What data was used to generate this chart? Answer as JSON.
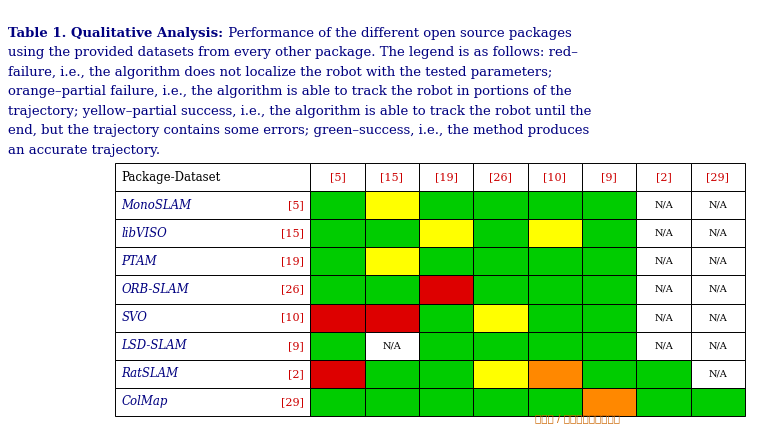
{
  "caption_lines": [
    {
      "bold": "Table 1. Qualitative Analysis:",
      "normal": " Performance of the different open source packages"
    },
    {
      "bold": "",
      "normal": "using the provided datasets from every other package. The legend is as follows: red–"
    },
    {
      "bold": "",
      "normal": "failure, i.e., the algorithm does not localize the robot with the tested parameters;"
    },
    {
      "bold": "",
      "normal": "orange–partial failure, i.e., the algorithm is able to track the robot in portions of the"
    },
    {
      "bold": "",
      "normal": "trajectory; yellow–partial success, i.e., the algorithm is able to track the robot until the"
    },
    {
      "bold": "",
      "normal": "end, but the trajectory contains some errors; green–success, i.e., the method produces"
    },
    {
      "bold": "",
      "normal": "an accurate trajectory."
    }
  ],
  "col_headers": [
    "[5]",
    "[15]",
    "[19]",
    "[26]",
    "[10]",
    "[9]",
    "[2]",
    "[29]"
  ],
  "row_headers": [
    [
      "MonoSLAM",
      "[5]"
    ],
    [
      "libVISO",
      "[15]"
    ],
    [
      "PTAM",
      "[19]"
    ],
    [
      "ORB-SLAM",
      "[26]"
    ],
    [
      "SVO",
      "[10]"
    ],
    [
      "LSD-SLAM",
      "[9]"
    ],
    [
      "RatSLAM",
      "[2]"
    ],
    [
      "ColMap",
      "[29]"
    ]
  ],
  "cell_colors": [
    [
      "GREEN",
      "YELLOW",
      "GREEN",
      "GREEN",
      "GREEN",
      "GREEN",
      "NA",
      "NA"
    ],
    [
      "GREEN",
      "GREEN",
      "YELLOW",
      "GREEN",
      "YELLOW",
      "GREEN",
      "NA",
      "NA"
    ],
    [
      "GREEN",
      "YELLOW",
      "GREEN",
      "GREEN",
      "GREEN",
      "GREEN",
      "NA",
      "NA"
    ],
    [
      "GREEN",
      "GREEN",
      "RED",
      "GREEN",
      "GREEN",
      "GREEN",
      "NA",
      "NA"
    ],
    [
      "RED",
      "RED",
      "GREEN",
      "YELLOW",
      "GREEN",
      "GREEN",
      "NA",
      "NA"
    ],
    [
      "GREEN",
      "NA",
      "GREEN",
      "GREEN",
      "GREEN",
      "GREEN",
      "NA",
      "NA"
    ],
    [
      "RED",
      "GREEN",
      "GREEN",
      "YELLOW",
      "ORANGE",
      "GREEN",
      "GREEN",
      "NA"
    ],
    [
      "GREEN",
      "GREEN",
      "GREEN",
      "GREEN",
      "GREEN",
      "ORANGE",
      "GREEN",
      "GREEN"
    ]
  ],
  "GREEN": "#00cc00",
  "YELLOW": "#ffff00",
  "RED": "#dd0000",
  "ORANGE": "#ff8800",
  "NA_BG": "#ffffff",
  "bg_color": "#ffffff",
  "text_color": "#000080",
  "ref_color": "#cc0000",
  "caption_color": "#000080",
  "caption_bold_color": "#000080",
  "watermark": "头条号 / 机器学习与人工智能",
  "watermark_color": "#cc6600",
  "font_size_caption": 9.5,
  "font_size_table": 8.5,
  "font_size_na": 7.0,
  "font_size_ref": 8.0,
  "font_size_watermark": 7.5
}
